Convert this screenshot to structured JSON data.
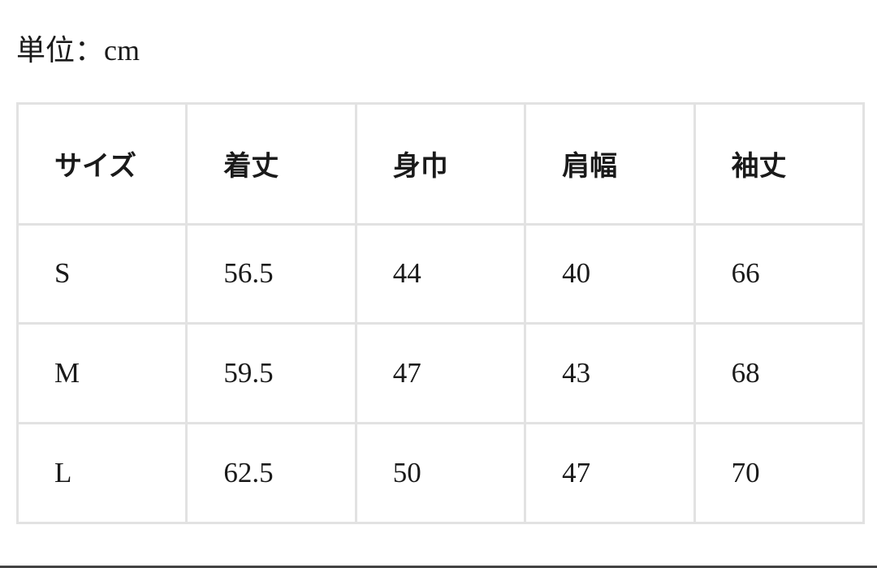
{
  "unit_label": "単位：",
  "unit_value": "cm",
  "table": {
    "headers": [
      "サイズ",
      "着丈",
      "身巾",
      "肩幅",
      "袖丈"
    ],
    "rows": [
      [
        "S",
        "56.5",
        "44",
        "40",
        "66"
      ],
      [
        "M",
        "59.5",
        "47",
        "43",
        "68"
      ],
      [
        "L",
        "62.5",
        "50",
        "47",
        "70"
      ]
    ]
  }
}
